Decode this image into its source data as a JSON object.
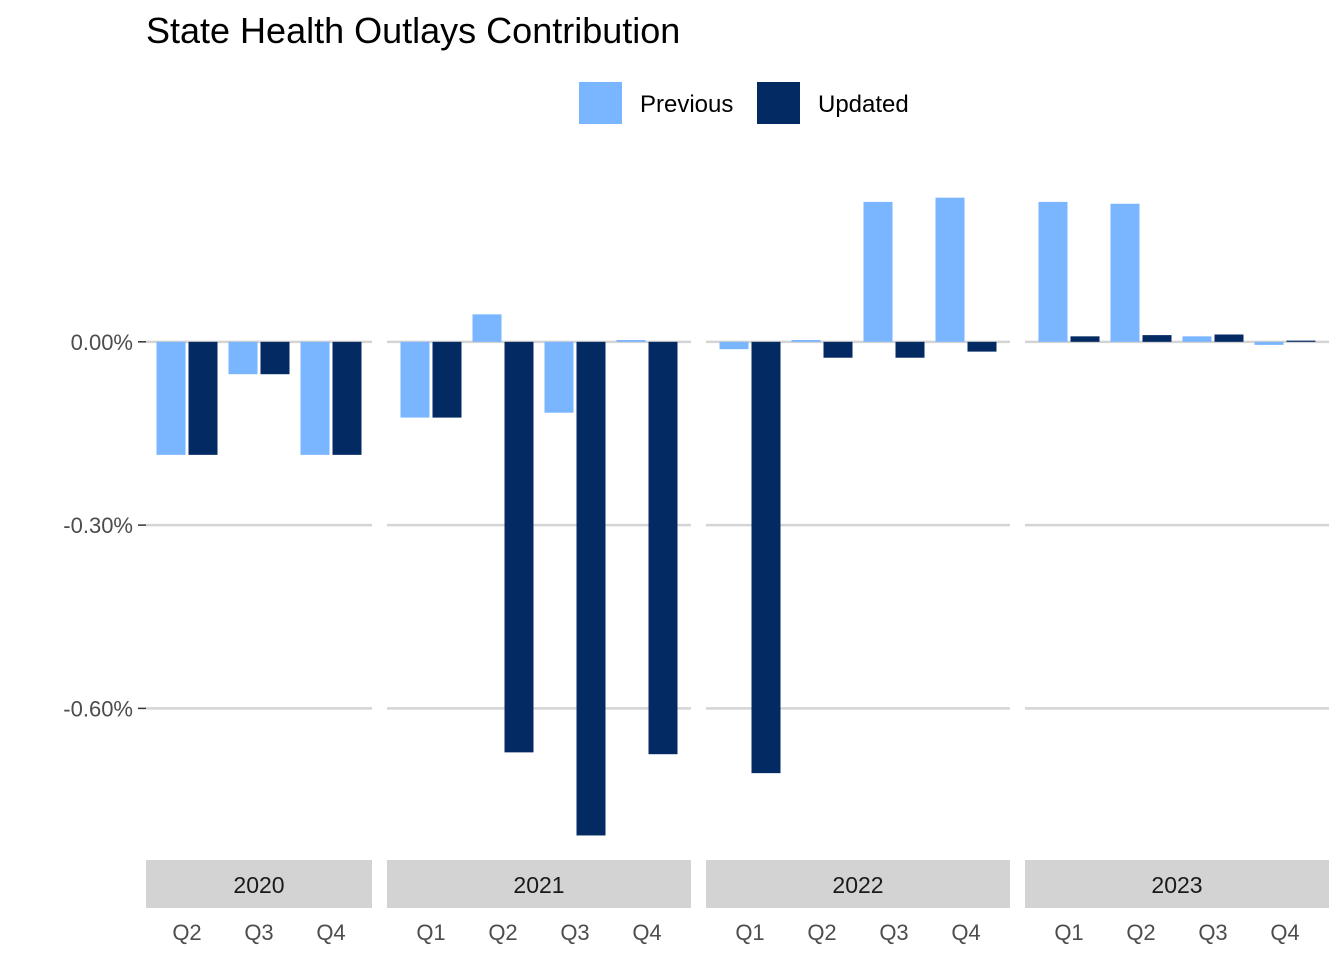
{
  "chart_data": {
    "type": "bar",
    "title": "State Health Outlays Contribution",
    "xlabel": "",
    "ylabel": "",
    "ylim": [
      -0.84,
      0.26
    ],
    "y_ticks": [
      0.0,
      -0.3,
      -0.6
    ],
    "y_tick_labels": [
      "0.00%",
      "-0.30%",
      "-0.60%"
    ],
    "grid": true,
    "legend_position": "top",
    "series": [
      {
        "name": "Previous",
        "color": "#79B6FF"
      },
      {
        "name": "Updated",
        "color": "#042A64"
      }
    ],
    "panels": [
      {
        "label": "2020",
        "categories": [
          "Q2",
          "Q3",
          "Q4"
        ],
        "Previous": [
          -0.185,
          -0.053,
          -0.185
        ],
        "Updated": [
          -0.185,
          -0.053,
          -0.185
        ]
      },
      {
        "label": "2021",
        "categories": [
          "Q1",
          "Q2",
          "Q3",
          "Q4"
        ],
        "Previous": [
          -0.124,
          0.045,
          -0.116,
          0.003
        ],
        "Updated": [
          -0.124,
          -0.672,
          -0.808,
          -0.675
        ]
      },
      {
        "label": "2022",
        "categories": [
          "Q1",
          "Q2",
          "Q3",
          "Q4"
        ],
        "Previous": [
          -0.012,
          0.003,
          0.229,
          0.236
        ],
        "Updated": [
          -0.706,
          -0.026,
          -0.026,
          -0.016
        ]
      },
      {
        "label": "2023",
        "categories": [
          "Q1",
          "Q2",
          "Q3",
          "Q4"
        ],
        "Previous": [
          0.229,
          0.226,
          0.009,
          -0.005
        ],
        "Updated": [
          0.009,
          0.011,
          0.012,
          0.002
        ]
      }
    ]
  }
}
